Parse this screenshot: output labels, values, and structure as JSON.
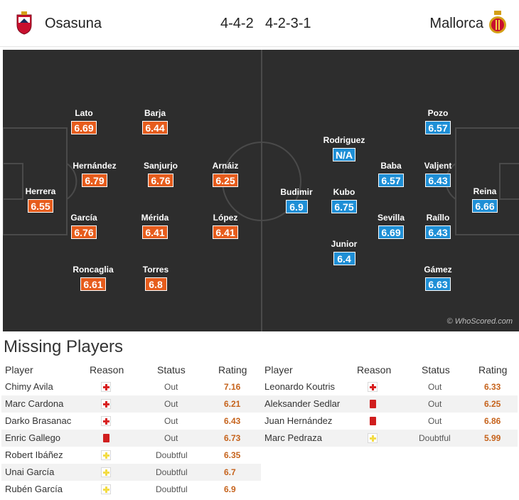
{
  "header": {
    "home_team": "Osasuna",
    "away_team": "Mallorca",
    "home_formation": "4-4-2",
    "away_formation": "4-2-3-1"
  },
  "pitch": {
    "watermark": "© WhoScored.com",
    "home_players": [
      {
        "name": "Herrera",
        "rating": "6.55"
      },
      {
        "name": "Lato",
        "rating": "6.69"
      },
      {
        "name": "Hernández",
        "rating": "6.79"
      },
      {
        "name": "García",
        "rating": "6.76"
      },
      {
        "name": "Roncaglia",
        "rating": "6.61"
      },
      {
        "name": "Barja",
        "rating": "6.44"
      },
      {
        "name": "Sanjurjo",
        "rating": "6.76"
      },
      {
        "name": "Mérida",
        "rating": "6.41"
      },
      {
        "name": "Torres",
        "rating": "6.8"
      },
      {
        "name": "Arnáiz",
        "rating": "6.25"
      },
      {
        "name": "López",
        "rating": "6.41"
      }
    ],
    "away_players": [
      {
        "name": "Reina",
        "rating": "6.66"
      },
      {
        "name": "Pozo",
        "rating": "6.57"
      },
      {
        "name": "Valjent",
        "rating": "6.43"
      },
      {
        "name": "Raíllo",
        "rating": "6.43"
      },
      {
        "name": "Gámez",
        "rating": "6.63"
      },
      {
        "name": "Baba",
        "rating": "6.57"
      },
      {
        "name": "Sevilla",
        "rating": "6.69"
      },
      {
        "name": "Rodriguez",
        "rating": "N/A"
      },
      {
        "name": "Kubo",
        "rating": "6.75"
      },
      {
        "name": "Junior",
        "rating": "6.4"
      },
      {
        "name": "Budimir",
        "rating": "6.9"
      }
    ]
  },
  "missing": {
    "title": "Missing Players",
    "columns": {
      "player": "Player",
      "reason": "Reason",
      "status": "Status",
      "rating": "Rating"
    },
    "home": [
      {
        "player": "Chimy Avila",
        "reason": "injury-icon",
        "status": "Out",
        "rating": "7.16"
      },
      {
        "player": "Marc Cardona",
        "reason": "injury-icon",
        "status": "Out",
        "rating": "6.21"
      },
      {
        "player": "Darko Brasanac",
        "reason": "injury-icon",
        "status": "Out",
        "rating": "6.43"
      },
      {
        "player": "Enric Gallego",
        "reason": "red-card-icon",
        "status": "Out",
        "rating": "6.73"
      },
      {
        "player": "Robert Ibáñez",
        "reason": "doubtful-icon",
        "status": "Doubtful",
        "rating": "6.35"
      },
      {
        "player": "Unai García",
        "reason": "doubtful-icon",
        "status": "Doubtful",
        "rating": "6.7"
      },
      {
        "player": "Rubén García",
        "reason": "doubtful-icon",
        "status": "Doubtful",
        "rating": "6.9"
      }
    ],
    "away": [
      {
        "player": "Leonardo Koutris",
        "reason": "injury-icon",
        "status": "Out",
        "rating": "6.33"
      },
      {
        "player": "Aleksander Sedlar",
        "reason": "red-card-icon",
        "status": "Out",
        "rating": "6.25"
      },
      {
        "player": "Juan Hernández",
        "reason": "red-card-icon",
        "status": "Out",
        "rating": "6.86"
      },
      {
        "player": "Marc Pedraza",
        "reason": "doubtful-icon",
        "status": "Doubtful",
        "rating": "5.99"
      }
    ]
  }
}
